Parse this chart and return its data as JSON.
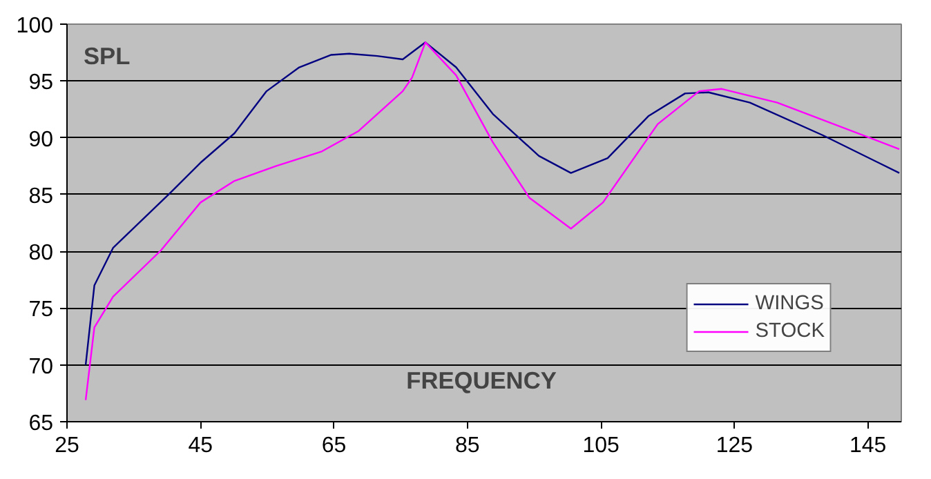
{
  "chart_data": {
    "type": "line",
    "xlabel": "FREQUENCY",
    "ylabel": "SPL",
    "xlim": [
      25,
      150
    ],
    "xticks": [
      25,
      45,
      65,
      85,
      105,
      125,
      145
    ],
    "ylim": [
      65,
      100
    ],
    "yticks": [
      65,
      70,
      75,
      80,
      85,
      90,
      95,
      100
    ],
    "grid": "y",
    "legend": "bottom right",
    "marker": "none",
    "line_style": "solid",
    "series": [
      {
        "name": "WINGS",
        "color": "#000080",
        "x": [
          27.8,
          29.1,
          31.9,
          40.4,
          45,
          50.1,
          54.9,
          59.8,
          64.6,
          67.3,
          71.5,
          75.3,
          78.7,
          83.3,
          88.8,
          95.7,
          100.5,
          106,
          112.1,
          117.6,
          121.1,
          127.3,
          138.3,
          149.7
        ],
        "values": [
          70.0,
          77.0,
          80.3,
          85.1,
          87.8,
          90.4,
          94.1,
          96.2,
          97.3,
          97.4,
          97.2,
          96.9,
          98.4,
          96.2,
          92.1,
          88.4,
          86.9,
          88.2,
          91.9,
          93.9,
          94.0,
          93.1,
          90.2,
          86.9
        ]
      },
      {
        "name": "STOCK",
        "color": "#ff00ff",
        "x": [
          27.8,
          29.1,
          31.9,
          39.1,
          45,
          50.1,
          56.3,
          63.2,
          68.7,
          75.3,
          76.7,
          78.7,
          83.3,
          88.8,
          94.3,
          100.5,
          105.3,
          113.5,
          119.7,
          123.1,
          131.4,
          149.7
        ],
        "values": [
          66.9,
          73.3,
          76.0,
          80.1,
          84.3,
          86.2,
          87.5,
          88.8,
          90.6,
          94.1,
          95.3,
          98.4,
          95.5,
          89.6,
          84.7,
          82.0,
          84.3,
          91.2,
          94.1,
          94.3,
          93.1,
          89.0
        ]
      }
    ]
  }
}
